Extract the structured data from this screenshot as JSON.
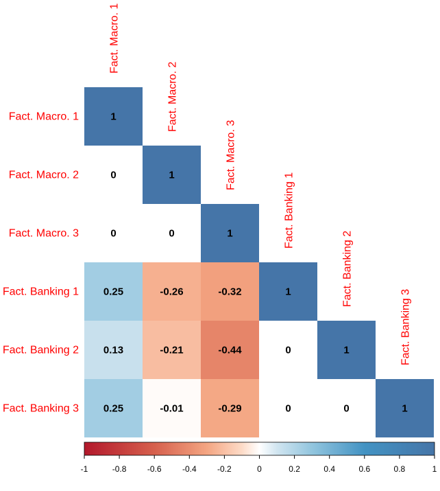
{
  "chart_data": {
    "type": "heatmap",
    "layout": "lower-triangle",
    "variables": [
      "Fact. Macro. 1",
      "Fact. Macro. 2",
      "Fact. Macro. 3",
      "Fact. Banking 1",
      "Fact. Banking 2",
      "Fact. Banking 3"
    ],
    "matrix": [
      [
        1,
        null,
        null,
        null,
        null,
        null
      ],
      [
        0,
        1,
        null,
        null,
        null,
        null
      ],
      [
        0,
        0,
        1,
        null,
        null,
        null
      ],
      [
        0.25,
        -0.26,
        -0.32,
        1,
        null,
        null
      ],
      [
        0.13,
        -0.21,
        -0.44,
        0,
        1,
        null
      ],
      [
        0.25,
        -0.01,
        -0.29,
        0,
        0,
        1
      ]
    ],
    "value_labels": [
      [
        "1",
        "",
        "",
        "",
        "",
        ""
      ],
      [
        "0",
        "1",
        "",
        "",
        "",
        ""
      ],
      [
        "0",
        "0",
        "1",
        "",
        "",
        ""
      ],
      [
        "0.25",
        "-0.26",
        "-0.32",
        "1",
        "",
        ""
      ],
      [
        "0.13",
        "-0.21",
        "-0.44",
        "0",
        "1",
        ""
      ],
      [
        "0.25",
        "-0.01",
        "-0.29",
        "0",
        "0",
        "1"
      ]
    ],
    "colorbar": {
      "range": [
        -1,
        1
      ],
      "ticks": [
        -1,
        -0.8,
        -0.6,
        -0.4,
        -0.2,
        0,
        0.2,
        0.4,
        0.6,
        0.8,
        1
      ],
      "tick_labels": [
        "-1",
        "-0.8",
        "-0.6",
        "-0.4",
        "-0.2",
        "0",
        "0.2",
        "0.4",
        "0.6",
        "0.8",
        "1"
      ],
      "placement": "bottom"
    },
    "color_scale": {
      "negative": "#b2182b",
      "mid": "#ffffff",
      "positive": "#2166ac"
    },
    "label_color": "#ff0000",
    "title": "",
    "xlabel": "",
    "ylabel": ""
  }
}
